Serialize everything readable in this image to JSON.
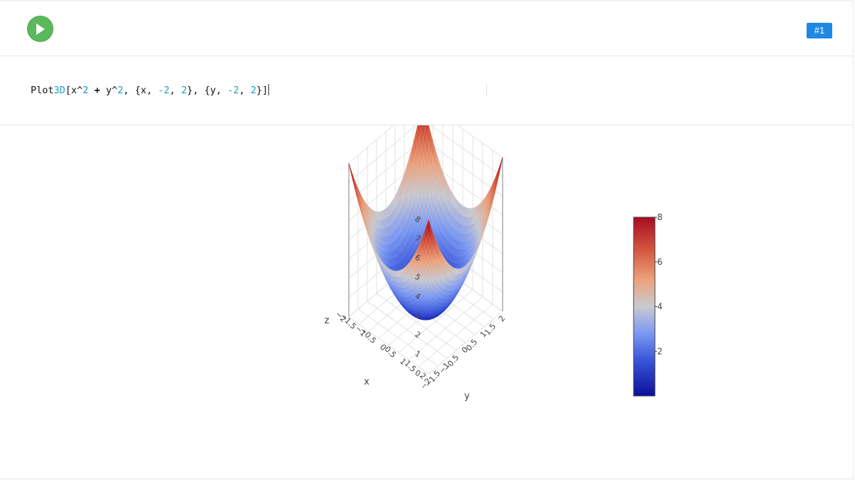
{
  "toolbar": {
    "cell_label": "#1"
  },
  "input": {
    "code": [
      {
        "t": "Plot",
        "c": "plain"
      },
      {
        "t": "3D",
        "c": "num"
      },
      {
        "t": "[x^",
        "c": "plain"
      },
      {
        "t": "2",
        "c": "num"
      },
      {
        "t": " ",
        "c": "plain"
      },
      {
        "t": "+",
        "c": "op"
      },
      {
        "t": " y^",
        "c": "plain"
      },
      {
        "t": "2",
        "c": "num"
      },
      {
        "t": ", {x, ",
        "c": "plain"
      },
      {
        "t": "-2",
        "c": "num"
      },
      {
        "t": ", ",
        "c": "plain"
      },
      {
        "t": "2",
        "c": "num"
      },
      {
        "t": "}, {y, ",
        "c": "plain"
      },
      {
        "t": "-2",
        "c": "num"
      },
      {
        "t": ", ",
        "c": "plain"
      },
      {
        "t": "2",
        "c": "num"
      },
      {
        "t": "}]",
        "c": "plain"
      }
    ]
  },
  "chart_data": {
    "type": "surface",
    "function": "x^2 + y^2",
    "x_range": [
      -2,
      2
    ],
    "y_range": [
      -2,
      2
    ],
    "z_range": [
      0,
      8
    ],
    "axes": {
      "x": {
        "title": "x",
        "ticks": [
          "−2",
          "−1.5",
          "−1",
          "−0.5",
          "0",
          "0.5",
          "1",
          "1.5",
          "2"
        ]
      },
      "y": {
        "title": "y",
        "ticks": [
          "−2",
          "−1.5",
          "−1",
          "−0.5",
          "0",
          "0.5",
          "1",
          "1.5",
          "2"
        ]
      },
      "z": {
        "title": "z",
        "ticks": [
          "0",
          "1",
          "2",
          "3",
          "4",
          "5",
          "6",
          "7",
          "8"
        ]
      }
    },
    "colorbar": {
      "ticks": [
        "2",
        "4",
        "6",
        "8"
      ],
      "tick_values": [
        2,
        4,
        6,
        8
      ],
      "range": [
        0,
        8
      ],
      "colors": [
        "#0c0f9a",
        "#3a55d8",
        "#7b98f2",
        "#c9c9d0",
        "#eca27c",
        "#d2553f",
        "#a70c24"
      ]
    }
  }
}
